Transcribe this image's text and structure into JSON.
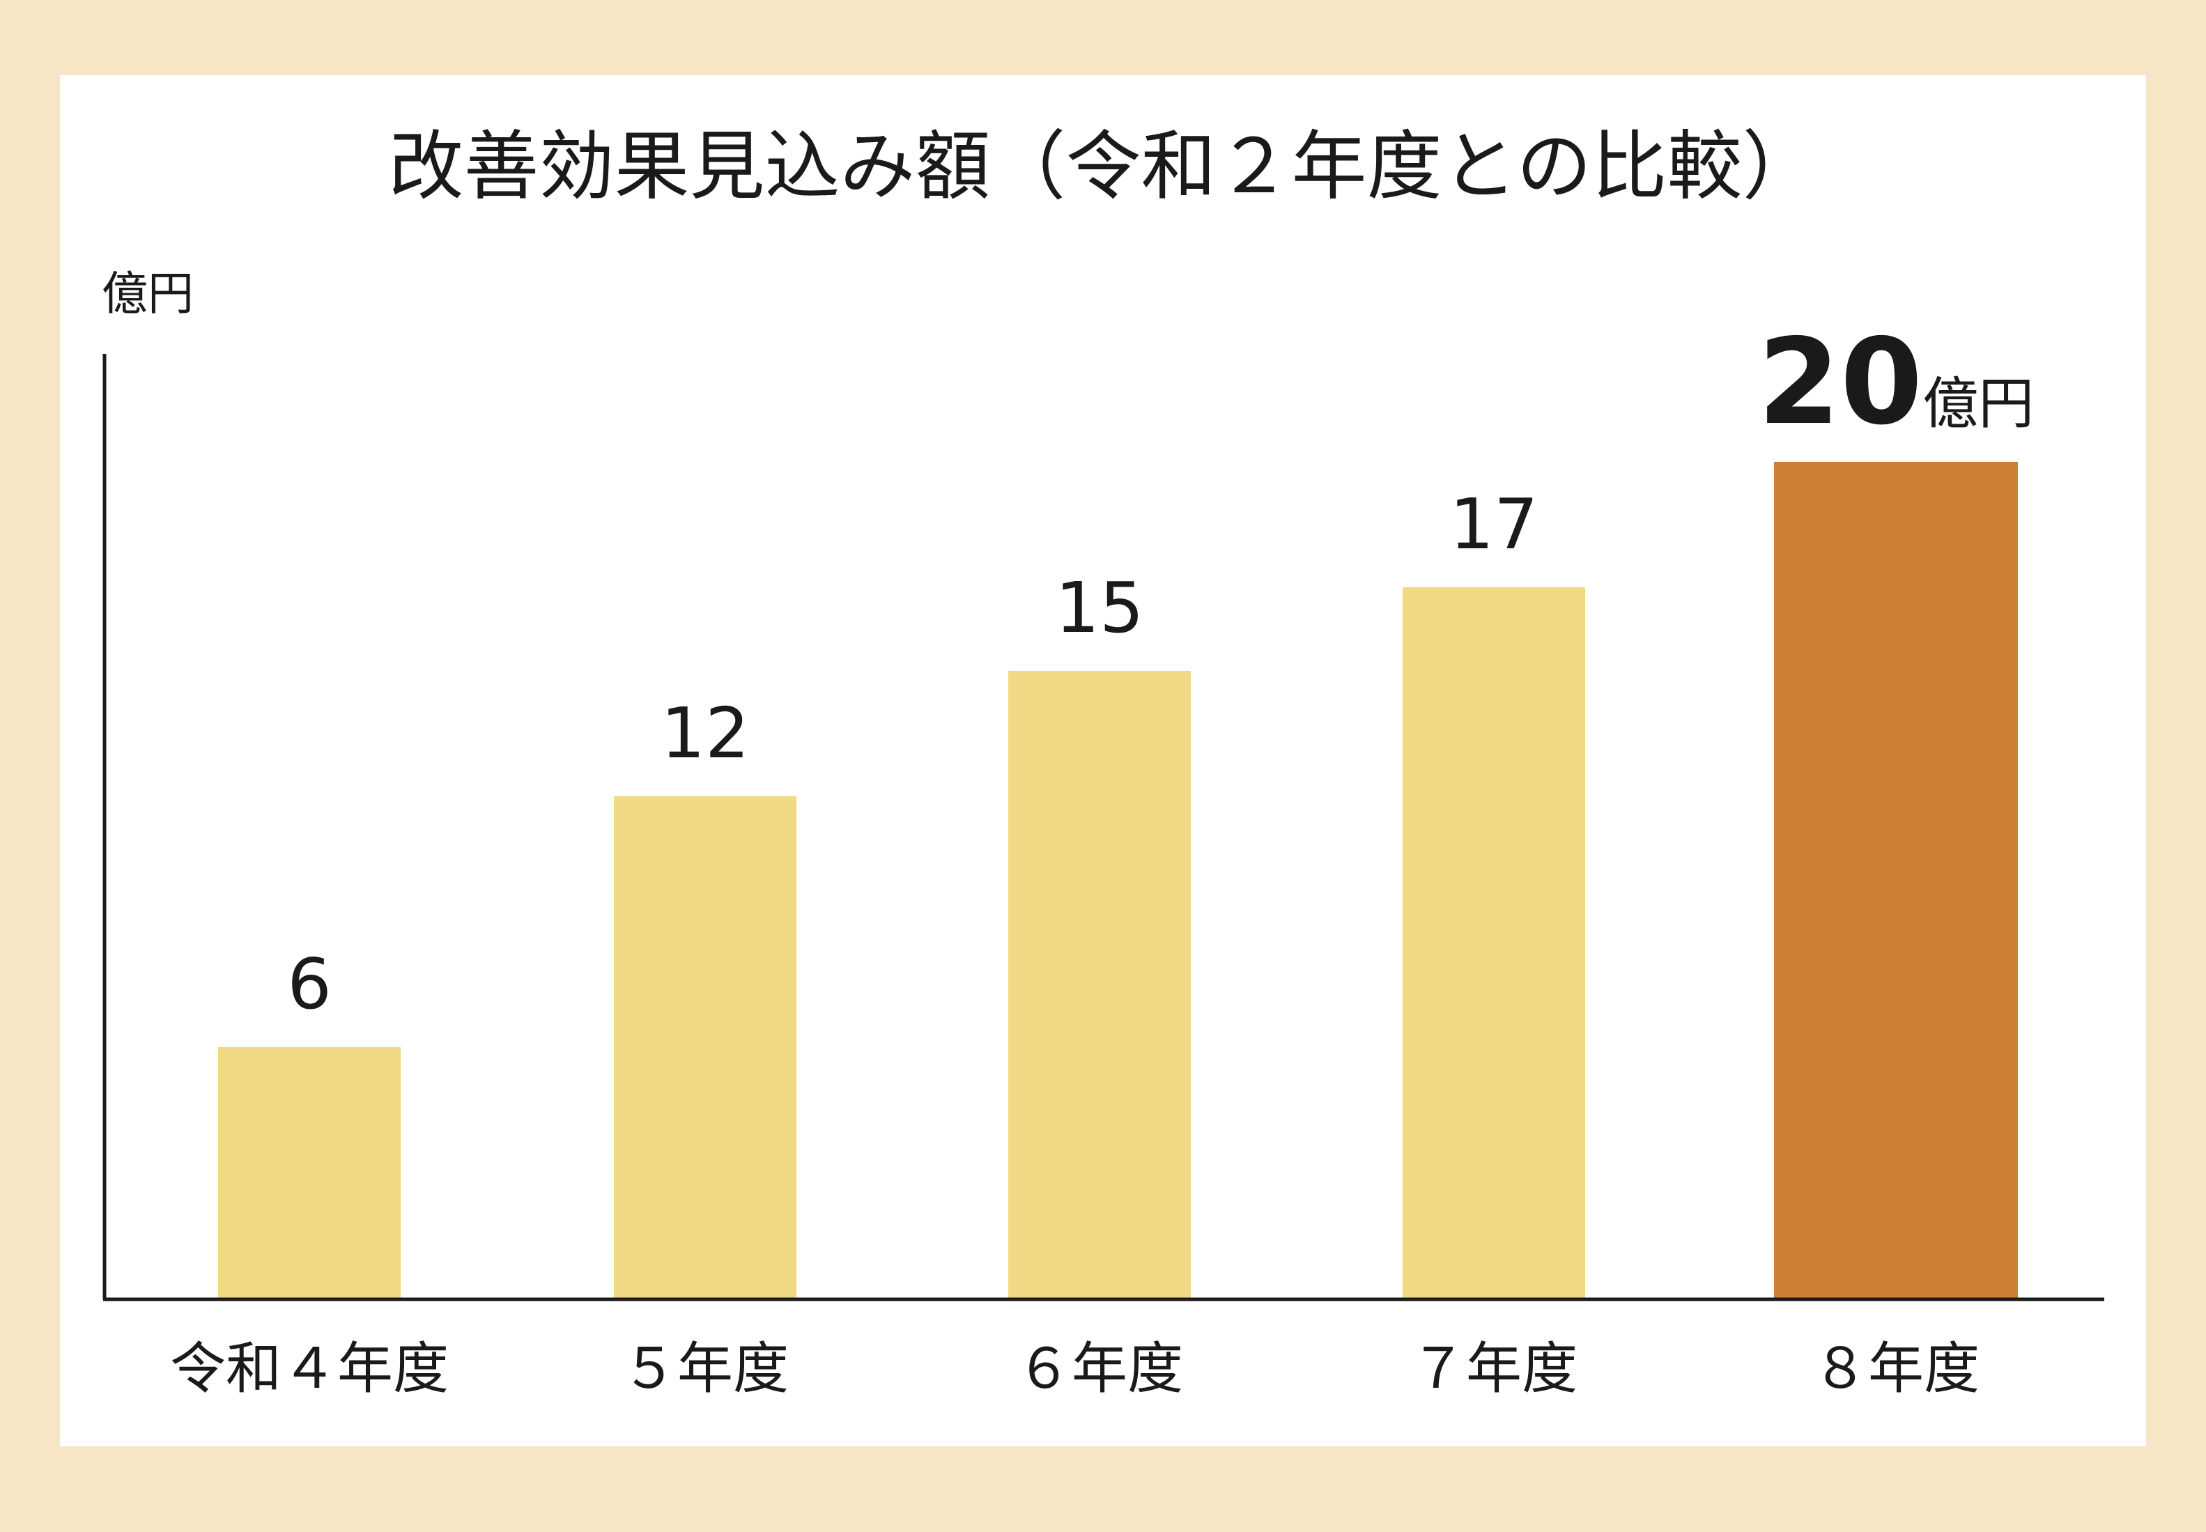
{
  "chart_data": {
    "type": "bar",
    "title": "改善効果見込み額（令和２年度との比較）",
    "ylabel": "億円",
    "categories": [
      "令和４年度",
      "５年度",
      "６年度",
      "７年度",
      "８年度"
    ],
    "values": [
      6,
      12,
      15,
      17,
      20
    ],
    "value_labels": [
      "6",
      "12",
      "15",
      "17",
      "20"
    ],
    "last_value_unit": "億円",
    "ylim": [
      0,
      20
    ],
    "grid": false,
    "colors": {
      "bar": "#f1d885",
      "highlight_bar": "#cd7f35",
      "axis": "#1a1a1a",
      "text": "#1a1a1a",
      "background": "#f6e6c6",
      "panel": "#ffffff"
    }
  }
}
